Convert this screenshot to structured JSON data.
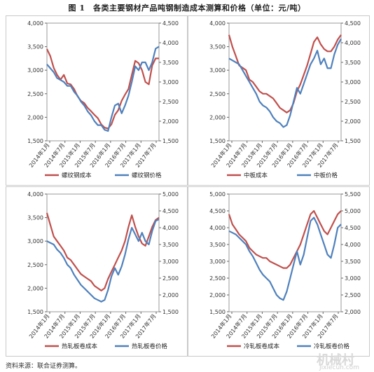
{
  "title": "图 1　各类主要钢材产品吨钢制造成本测算和价格（单位：元/吨）",
  "source": "资料来源：联合证券测算。",
  "watermark": {
    "cn": "机械村",
    "en": "Jixiecun.com"
  },
  "colors": {
    "cost": "#c0504d",
    "price": "#4f81bd"
  },
  "chart_data": [
    {
      "type": "line",
      "x_labels": [
        "2014年1月",
        "2014年7月",
        "2015年1月",
        "2015年7月",
        "2016年1月",
        "2016年7月",
        "2017年1月",
        "2017年7月"
      ],
      "left_axis": {
        "ticks": [
          "1,500",
          "2,000",
          "2,500",
          "3,000",
          "3,500",
          "4,000"
        ],
        "range": [
          1500,
          4000
        ]
      },
      "right_axis": {
        "ticks": [
          "1,500",
          "2,000",
          "2,500",
          "3,000",
          "3,500",
          "4,000",
          "4,500"
        ],
        "range": [
          1500,
          4500
        ]
      },
      "series": [
        {
          "name": "螺纹钢成本",
          "axis": "left",
          "color": "#c0504d",
          "values": [
            3450,
            3300,
            3050,
            2900,
            2800,
            2900,
            2720,
            2700,
            2600,
            2450,
            2350,
            2300,
            2200,
            2130,
            2050,
            1980,
            1850,
            1780,
            1760,
            1850,
            2050,
            2150,
            2350,
            2480,
            2600,
            2900,
            3200,
            3150,
            3000,
            2750,
            2700,
            3100,
            3250,
            3250
          ]
        },
        {
          "name": "螺纹钢价格",
          "axis": "right",
          "color": "#4f81bd",
          "values": [
            3450,
            3350,
            3250,
            3100,
            3050,
            3000,
            2900,
            2900,
            2750,
            2650,
            2500,
            2400,
            2250,
            2150,
            2000,
            1900,
            1900,
            1780,
            1750,
            2100,
            2400,
            2450,
            2200,
            2400,
            2650,
            3000,
            3400,
            3300,
            3500,
            3500,
            3300,
            3500,
            3850,
            3900
          ]
        }
      ]
    },
    {
      "type": "line",
      "x_labels": [
        "2014年1月",
        "2014年7月",
        "2015年1月",
        "2015年7月",
        "2016年1月",
        "2016年7月",
        "2017年1月",
        "2017年7月"
      ],
      "left_axis": {
        "ticks": [
          "1,500",
          "2,000",
          "2,500",
          "3,000",
          "3,500",
          "4,000"
        ],
        "range": [
          1500,
          4000
        ]
      },
      "right_axis": {
        "ticks": [
          "1,500",
          "2,000",
          "2,500",
          "3,000",
          "3,500",
          "4,000",
          "4,500"
        ],
        "range": [
          1500,
          4500
        ]
      },
      "series": [
        {
          "name": "中板成本",
          "axis": "left",
          "color": "#c0504d",
          "values": [
            3750,
            3500,
            3300,
            3100,
            3050,
            3000,
            2800,
            2750,
            2650,
            2550,
            2500,
            2500,
            2450,
            2400,
            2300,
            2200,
            2150,
            2100,
            2150,
            2300,
            2550,
            2700,
            2900,
            3100,
            3350,
            3600,
            3700,
            3550,
            3450,
            3400,
            3400,
            3500,
            3650,
            3750
          ]
        },
        {
          "name": "中板价格",
          "axis": "right",
          "color": "#4f81bd",
          "values": [
            3600,
            3550,
            3500,
            3450,
            3300,
            3150,
            3000,
            2850,
            2700,
            2500,
            2400,
            2350,
            2250,
            2100,
            2000,
            1950,
            1850,
            1900,
            2150,
            2500,
            2850,
            2700,
            2950,
            3200,
            3450,
            3600,
            3800,
            3450,
            3600,
            3350,
            3350,
            3700,
            3950,
            4100
          ]
        }
      ]
    },
    {
      "type": "line",
      "x_labels": [
        "2014年1月",
        "2014年7月",
        "2015年1月",
        "2015年7月",
        "2016年1月",
        "2016年7月",
        "2017年1月",
        "2017年7月"
      ],
      "left_axis": {
        "ticks": [
          "1,500",
          "2,000",
          "2,500",
          "3,000",
          "3,500",
          "4,000"
        ],
        "range": [
          1500,
          4000
        ]
      },
      "right_axis": {
        "ticks": [
          "1,500",
          "2,000",
          "2,500",
          "3,000",
          "3,500",
          "4,000",
          "4,500",
          "5,000"
        ],
        "range": [
          1500,
          5000
        ]
      },
      "series": [
        {
          "name": "热轧板卷成本",
          "axis": "left",
          "color": "#c0504d",
          "values": [
            3600,
            3350,
            3100,
            3000,
            2900,
            2800,
            2650,
            2600,
            2500,
            2400,
            2300,
            2250,
            2200,
            2150,
            2050,
            2000,
            1950,
            2000,
            2200,
            2350,
            2500,
            2650,
            2800,
            3000,
            3300,
            3550,
            3300,
            3100,
            2950,
            2900,
            3100,
            3300,
            3450,
            3500
          ]
        },
        {
          "name": "热轧板卷价格",
          "axis": "right",
          "color": "#4f81bd",
          "values": [
            3600,
            3550,
            3500,
            3350,
            3250,
            3100,
            2900,
            2800,
            2600,
            2450,
            2300,
            2200,
            2100,
            2000,
            1900,
            1850,
            1800,
            1850,
            2150,
            2550,
            2800,
            2600,
            2850,
            3200,
            3650,
            4000,
            3800,
            3600,
            3850,
            3600,
            3500,
            3900,
            4200,
            4250
          ]
        }
      ]
    },
    {
      "type": "line",
      "x_labels": [
        "2014年1月",
        "2014年7月",
        "2015年1月",
        "2015年7月",
        "2016年1月",
        "2016年7月",
        "2017年1月",
        "2017年7月"
      ],
      "left_axis": {
        "ticks": [
          "1,500",
          "2,000",
          "2,500",
          "3,000",
          "3,500",
          "4,000",
          "4,500",
          "5,000"
        ],
        "range": [
          1500,
          5000
        ]
      },
      "right_axis": {
        "ticks": [
          "2,000",
          "2,500",
          "3,000",
          "3,500",
          "4,000",
          "4,500",
          "5,000",
          "5,500"
        ],
        "range": [
          2000,
          5500
        ]
      },
      "series": [
        {
          "name": "冷轧板卷成本",
          "axis": "left",
          "color": "#c0504d",
          "values": [
            4400,
            4100,
            3950,
            3800,
            3700,
            3600,
            3400,
            3300,
            3200,
            3150,
            3100,
            3100,
            3000,
            2950,
            2900,
            2850,
            2800,
            2800,
            2900,
            3100,
            3300,
            3500,
            3800,
            4100,
            4400,
            4500,
            4300,
            4100,
            3900,
            3800,
            4000,
            4200,
            4400,
            4500
          ]
        },
        {
          "name": "冷轧板卷价格",
          "axis": "right",
          "color": "#4f81bd",
          "values": [
            4400,
            4350,
            4300,
            4200,
            4100,
            4000,
            3800,
            3650,
            3450,
            3250,
            3100,
            3000,
            2900,
            2700,
            2500,
            2400,
            2350,
            2600,
            3000,
            3400,
            3800,
            3400,
            3700,
            4200,
            4700,
            4800,
            4600,
            4300,
            4000,
            3700,
            3600,
            4000,
            4500,
            4600
          ]
        }
      ]
    }
  ]
}
